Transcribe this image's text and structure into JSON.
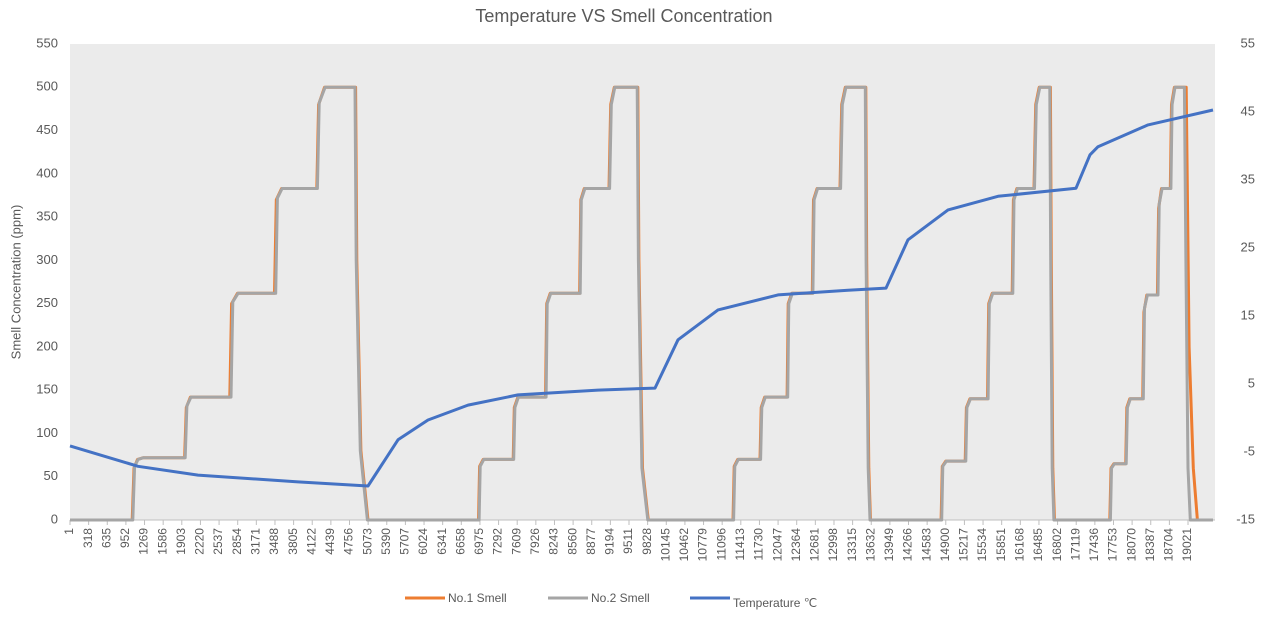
{
  "chart_data": {
    "type": "line",
    "title": "Temperature VS Smell Concentration",
    "y_label": "Smell Concentration (ppm)",
    "xlim": [
      1,
      19480
    ],
    "xticks": [
      1,
      318,
      635,
      952,
      1269,
      1586,
      1903,
      2220,
      2537,
      2854,
      3171,
      3488,
      3805,
      4122,
      4439,
      4756,
      5073,
      5390,
      5707,
      6024,
      6341,
      6658,
      6975,
      7292,
      7609,
      7926,
      8243,
      8560,
      8877,
      9194,
      9511,
      9828,
      10145,
      10462,
      10779,
      11096,
      11413,
      11730,
      12047,
      12364,
      12681,
      12998,
      13315,
      13632,
      13949,
      14266,
      14583,
      14900,
      15217,
      15534,
      15851,
      16168,
      16485,
      16802,
      17119,
      17436,
      17753,
      18070,
      18387,
      18704,
      19021
    ],
    "ylim": [
      0,
      550
    ],
    "yticks": [
      0,
      50,
      100,
      150,
      200,
      250,
      300,
      350,
      400,
      450,
      500,
      550
    ],
    "y2lim": [
      -15,
      55
    ],
    "y2ticks": [
      -15,
      -5,
      5,
      15,
      25,
      35,
      45,
      55
    ],
    "legend": "bottom",
    "series": [
      {
        "name": "No.1 Smell",
        "color": "#ed7d31",
        "x": [
          1,
          1060,
          1090,
          1150,
          1250,
          1950,
          1980,
          2050,
          2720,
          2750,
          2850,
          3480,
          3510,
          3600,
          4200,
          4230,
          4330,
          4860,
          4880,
          4950,
          5070,
          6950,
          6970,
          7030,
          7540,
          7560,
          7620,
          8090,
          8110,
          8170,
          8670,
          8690,
          8750,
          9170,
          9200,
          9260,
          9660,
          9680,
          9740,
          9840,
          11280,
          11300,
          11360,
          11740,
          11760,
          11820,
          12200,
          12220,
          12280,
          12630,
          12650,
          12710,
          13100,
          13130,
          13190,
          13540,
          13555,
          13590,
          13620,
          14820,
          14840,
          14900,
          15230,
          15250,
          15310,
          15610,
          15630,
          15690,
          16030,
          16050,
          16110,
          16400,
          16430,
          16490,
          16680,
          16695,
          16720,
          16750,
          17690,
          17710,
          17760,
          17960,
          17980,
          18030,
          18250,
          18270,
          18320,
          18500,
          18520,
          18570,
          18720,
          18740,
          18790,
          18990,
          19040,
          19110,
          19180,
          19446
        ],
        "values": [
          0,
          0,
          60,
          70,
          72,
          72,
          130,
          142,
          142,
          250,
          262,
          262,
          370,
          383,
          383,
          480,
          500,
          500,
          300,
          80,
          0,
          0,
          62,
          70,
          70,
          130,
          142,
          142,
          250,
          262,
          262,
          370,
          383,
          383,
          480,
          500,
          500,
          300,
          60,
          0,
          0,
          62,
          70,
          70,
          130,
          142,
          142,
          250,
          262,
          262,
          370,
          383,
          383,
          480,
          500,
          500,
          300,
          60,
          0,
          0,
          62,
          68,
          68,
          130,
          140,
          140,
          250,
          262,
          262,
          370,
          383,
          383,
          480,
          500,
          500,
          300,
          60,
          0,
          0,
          60,
          65,
          65,
          130,
          140,
          140,
          240,
          260,
          260,
          360,
          383,
          383,
          480,
          500,
          500,
          200,
          60,
          0,
          0
        ]
      },
      {
        "name": "No.2 Smell",
        "color": "#a5a5a5",
        "x": [
          1,
          1070,
          1100,
          1160,
          1250,
          1960,
          1990,
          2060,
          2740,
          2770,
          2860,
          3500,
          3530,
          3610,
          4210,
          4240,
          4340,
          4850,
          4870,
          4940,
          5060,
          6960,
          6980,
          7040,
          7550,
          7570,
          7630,
          8100,
          8120,
          8180,
          8680,
          8700,
          8760,
          9180,
          9210,
          9270,
          9650,
          9670,
          9730,
          9830,
          11290,
          11310,
          11370,
          11750,
          11770,
          11830,
          12210,
          12230,
          12290,
          12640,
          12660,
          12720,
          13110,
          13140,
          13200,
          13530,
          13545,
          13580,
          13610,
          14830,
          14850,
          14910,
          15240,
          15260,
          15320,
          15620,
          15640,
          15700,
          16040,
          16060,
          16120,
          16410,
          16440,
          16500,
          16670,
          16685,
          16710,
          16740,
          17700,
          17720,
          17770,
          17970,
          17990,
          18040,
          18260,
          18280,
          18330,
          18510,
          18530,
          18580,
          18730,
          18750,
          18800,
          18960,
          18985,
          19020,
          19060,
          19446
        ],
        "values": [
          0,
          0,
          62,
          70,
          72,
          72,
          132,
          142,
          142,
          252,
          262,
          262,
          372,
          383,
          383,
          482,
          500,
          500,
          300,
          80,
          0,
          0,
          62,
          70,
          70,
          130,
          142,
          142,
          250,
          262,
          262,
          370,
          383,
          383,
          480,
          500,
          500,
          300,
          60,
          0,
          0,
          62,
          70,
          70,
          130,
          142,
          142,
          250,
          262,
          262,
          370,
          383,
          383,
          480,
          500,
          500,
          300,
          60,
          0,
          0,
          62,
          68,
          68,
          130,
          140,
          140,
          250,
          262,
          262,
          370,
          383,
          383,
          480,
          500,
          500,
          300,
          60,
          0,
          0,
          60,
          65,
          65,
          130,
          140,
          140,
          245,
          260,
          260,
          365,
          383,
          383,
          480,
          500,
          500,
          300,
          60,
          0,
          0
        ]
      },
      {
        "name": "Temperature  ℃",
        "color": "#4472c4",
        "axis": "y2",
        "x": [
          1,
          1158,
          2179,
          3880,
          5071,
          5581,
          6092,
          6772,
          7623,
          8984,
          9953,
          10344,
          11025,
          12046,
          13237,
          13883,
          14257,
          14938,
          15789,
          17116,
          17354,
          17490,
          18340,
          19446
        ],
        "values": [
          -4.1,
          -7.1,
          -8.4,
          -9.4,
          -10,
          -3.2,
          -0.3,
          1.9,
          3.4,
          4.1,
          4.4,
          11.5,
          15.9,
          18.1,
          18.8,
          19.1,
          26.2,
          30.6,
          32.6,
          33.8,
          38.7,
          39.9,
          43.1,
          45.3
        ]
      }
    ]
  }
}
